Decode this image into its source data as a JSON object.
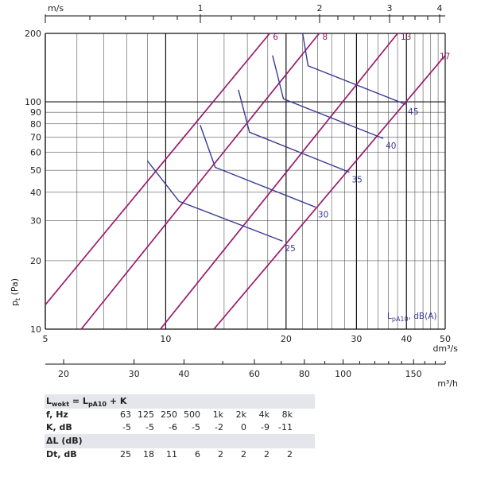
{
  "chart_data": {
    "type": "line",
    "x_bottom": {
      "label": "dm³/s",
      "scale": "log",
      "range": [
        5,
        50
      ],
      "ticks": [
        "5",
        "10",
        "20",
        "30",
        "40",
        "50"
      ]
    },
    "x_second": {
      "label": "m³/h",
      "scale": "log",
      "range": [
        18,
        180
      ],
      "ticks": [
        "20",
        "30",
        "40",
        "60",
        "80",
        "100",
        "150"
      ]
    },
    "x_top": {
      "label": "m/s",
      "ticks": [
        "1",
        "2",
        "3",
        "4"
      ]
    },
    "y": {
      "label": "pt (Pa)",
      "scale": "log",
      "range": [
        10,
        200
      ],
      "ticks": [
        "10",
        "20",
        "30",
        "40",
        "50",
        "60",
        "70",
        "80",
        "90",
        "100",
        "200"
      ]
    },
    "velocity_lines": [
      {
        "name": "6",
        "points": [
          [
            5,
            12.8
          ],
          [
            18.2,
            200
          ]
        ]
      },
      {
        "name": "8",
        "points": [
          [
            6.15,
            10
          ],
          [
            24.2,
            200
          ]
        ]
      },
      {
        "name": "13",
        "points": [
          [
            9.7,
            10
          ],
          [
            38,
            200
          ]
        ]
      },
      {
        "name": "17",
        "points": [
          [
            13.2,
            10
          ],
          [
            50,
            160
          ]
        ]
      }
    ],
    "sound_lines": [
      {
        "name": "25",
        "points": [
          [
            9,
            55
          ],
          [
            10.8,
            36.5
          ],
          [
            19.6,
            24.4
          ]
        ]
      },
      {
        "name": "30",
        "points": [
          [
            12.2,
            79
          ],
          [
            13.3,
            51.5
          ],
          [
            23.7,
            34.4
          ]
        ]
      },
      {
        "name": "35",
        "points": [
          [
            15.2,
            113
          ],
          [
            16.2,
            73.5
          ],
          [
            28.8,
            49
          ]
        ]
      },
      {
        "name": "40",
        "points": [
          [
            18.5,
            160
          ],
          [
            19.7,
            103
          ],
          [
            35,
            69
          ]
        ]
      },
      {
        "name": "45",
        "points": [
          [
            22,
            200
          ],
          [
            22.7,
            144
          ],
          [
            39.8,
            97.5
          ]
        ]
      }
    ],
    "legend_label": "LpA10, dB(A)"
  },
  "correction_table": {
    "formula": {
      "lhs": "L",
      "lhs_sub": "wokt",
      "eq": " = L",
      "rhs_sub": "pA10",
      "rhs_tail": " + K"
    },
    "f_label": "f, Hz",
    "frequencies": [
      "63",
      "125",
      "250",
      "500",
      "1k",
      "2k",
      "4k",
      "8k"
    ],
    "k_label": "K, dB",
    "k_values": [
      "-5",
      "-5",
      "-6",
      "-5",
      "-2",
      "0",
      "-9",
      "-11"
    ],
    "delta_title": "ΔL (dB)",
    "dt_label": "Dt, dB",
    "dt_values": [
      "25",
      "18",
      "11",
      "6",
      "2",
      "2",
      "2",
      "2"
    ]
  }
}
